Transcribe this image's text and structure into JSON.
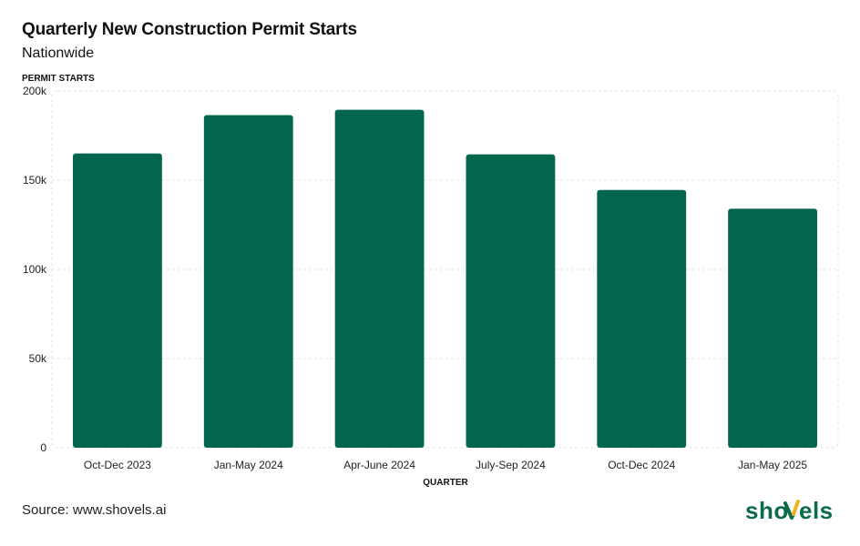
{
  "title": "Quarterly New Construction Permit Starts",
  "subtitle": "Nationwide",
  "source": "Source: www.shovels.ai",
  "brand": {
    "name": "shovels",
    "text_color": "#0b6b4a",
    "accent_color": "#f2b11b"
  },
  "colors": {
    "bar": "#02664d",
    "grid": "#e2e2e2"
  },
  "chart_data": {
    "type": "bar",
    "xlabel": "QUARTER",
    "ylabel": "PERMIT STARTS",
    "categories": [
      "Oct-Dec 2023",
      "Jan-May 2024",
      "Apr-June 2024",
      "July-Sep 2024",
      "Oct-Dec 2024",
      "Jan-May 2025"
    ],
    "values": [
      165000,
      186500,
      189500,
      164500,
      144500,
      134000
    ],
    "ylim": [
      0,
      200000
    ],
    "yticks": [
      0,
      50000,
      100000,
      150000,
      200000
    ],
    "ytick_labels": [
      "0",
      "50k",
      "100k",
      "150k",
      "200k"
    ],
    "grid": true,
    "legend": "none"
  }
}
